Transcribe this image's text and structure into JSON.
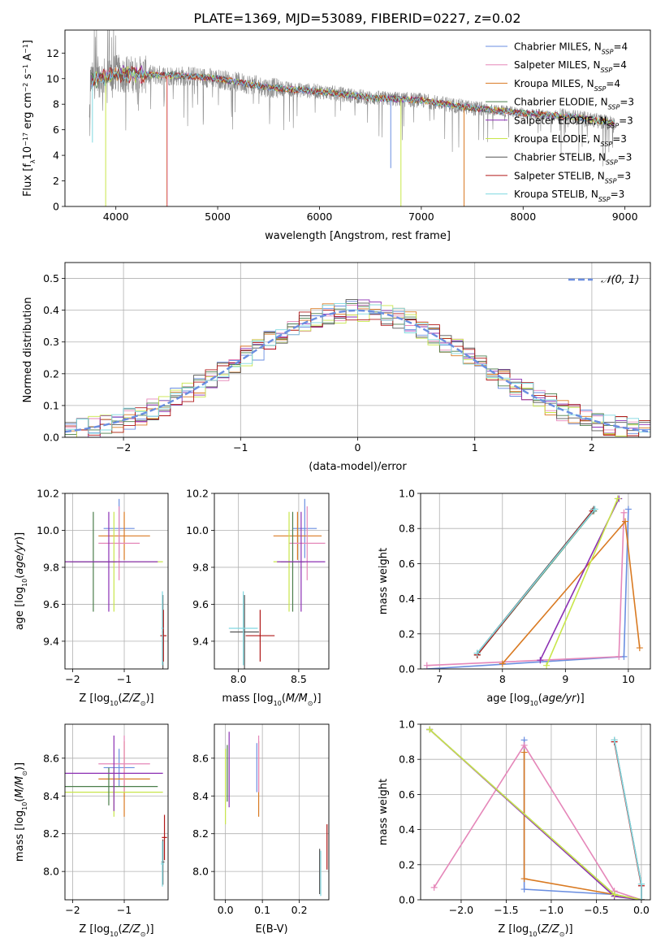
{
  "colors": {
    "chabrier_miles": "#6a8ee0",
    "salpeter_miles": "#e587b9",
    "kroupa_miles": "#d97a22",
    "chabrier_elodie": "#4a7d4a",
    "salpeter_elodie": "#8b2fb3",
    "kroupa_elodie": "#c8e64a",
    "chabrier_stelib": "#555555",
    "salpeter_stelib": "#b01818",
    "kroupa_stelib": "#7fd8e0",
    "data": "#888888",
    "grid": "#b0b0b0"
  },
  "chart_data": [
    {
      "type": "line",
      "title": "PLATE=1369, MJD=53089, FIBERID=0227, z=0.02",
      "xlabel": "wavelength [Angstrom, rest frame]",
      "ylabel": "Flux [fλ10⁻¹⁷ erg cm⁻² s⁻¹ A⁻¹]",
      "xlim": [
        3500,
        9250
      ],
      "ylim": [
        0,
        13.8
      ],
      "x_ticks": [
        4000,
        5000,
        6000,
        7000,
        8000,
        9000
      ],
      "y_ticks": [
        0,
        2,
        4,
        6,
        8,
        10,
        12
      ],
      "grid": false,
      "legend_position": "top-right",
      "continuum_x": [
        3750,
        4000,
        4300,
        4700,
        5000,
        5500,
        6000,
        6500,
        7000,
        7500,
        8000,
        8500,
        8900
      ],
      "continuum_y": [
        9.8,
        10.4,
        10.3,
        10.2,
        10.0,
        9.3,
        9.0,
        8.5,
        8.3,
        7.7,
        7.3,
        7.0,
        6.5
      ],
      "series": [
        {
          "name": "Chabrier MILES, N_SSP=4",
          "color_key": "chabrier_miles"
        },
        {
          "name": "Salpeter MILES, N_SSP=4",
          "color_key": "salpeter_miles"
        },
        {
          "name": "Kroupa MILES, N_SSP=4",
          "color_key": "kroupa_miles"
        },
        {
          "name": "Chabrier ELODIE, N_SSP=3",
          "color_key": "chabrier_elodie"
        },
        {
          "name": "Salpeter ELODIE, N_SSP=3",
          "color_key": "salpeter_elodie"
        },
        {
          "name": "Kroupa ELODIE, N_SSP=3",
          "color_key": "kroupa_elodie"
        },
        {
          "name": "Chabrier STELIB, N_SSP=3",
          "color_key": "chabrier_stelib"
        },
        {
          "name": "Salpeter STELIB, N_SSP=3",
          "color_key": "salpeter_stelib"
        },
        {
          "name": "Kroupa STELIB, N_SSP=3",
          "color_key": "kroupa_stelib"
        }
      ]
    },
    {
      "type": "line",
      "xlabel": "(data-model)/error",
      "ylabel": "Normed distribution",
      "xlim": [
        -2.5,
        2.5
      ],
      "ylim": [
        0,
        0.55
      ],
      "x_ticks": [
        -2,
        -1,
        0,
        1,
        2
      ],
      "y_ticks": [
        0.0,
        0.1,
        0.2,
        0.3,
        0.4,
        0.5
      ],
      "grid": true,
      "legend": "𝒩(0, 1)",
      "legend_position": "top-right",
      "bin_width": 0.1
    },
    {
      "type": "scatter",
      "xlabel": "Z [log10(Z/Z⊙)]",
      "ylabel": "age [log10(age/yr)]",
      "xlim": [
        -2.15,
        -0.15
      ],
      "ylim": [
        9.25,
        10.2
      ],
      "x_ticks": [
        -2,
        -1
      ],
      "y_ticks": [
        9.4,
        9.6,
        9.8,
        10.0,
        10.2
      ],
      "grid": true,
      "points": [
        {
          "color_key": "chabrier_miles",
          "x": -1.1,
          "xerr": 0.3,
          "y": 10.01,
          "yerr": 0.16
        },
        {
          "color_key": "kroupa_miles",
          "x": -1.0,
          "xerr": 0.5,
          "y": 9.97,
          "yerr": 0.13
        },
        {
          "color_key": "salpeter_miles",
          "x": -1.1,
          "xerr": 0.4,
          "y": 9.93,
          "yerr": 0.2
        },
        {
          "color_key": "kroupa_elodie",
          "x": -1.2,
          "xerr": 0.95,
          "y": 9.83,
          "yerr": 0.27
        },
        {
          "color_key": "chabrier_elodie",
          "x": -1.6,
          "xerr": 0.45,
          "y": 9.83,
          "yerr": 0.27
        },
        {
          "color_key": "salpeter_elodie",
          "x": -1.3,
          "xerr": 0.95,
          "y": 9.83,
          "yerr": 0.27
        },
        {
          "color_key": "chabrier_stelib",
          "x": -0.25,
          "xerr": 0.02,
          "y": 9.45,
          "yerr": 0.2
        },
        {
          "color_key": "salpeter_stelib",
          "x": -0.24,
          "xerr": 0.06,
          "y": 9.43,
          "yerr": 0.14
        },
        {
          "color_key": "kroupa_stelib",
          "x": -0.26,
          "xerr": 0.02,
          "y": 9.47,
          "yerr": 0.2
        }
      ]
    },
    {
      "type": "scatter",
      "xlabel": "mass [log10(M/M⊙)]",
      "xlim": [
        7.8,
        8.75
      ],
      "ylim": [
        9.25,
        10.2
      ],
      "x_ticks": [
        8.0,
        8.5
      ],
      "y_ticks": [
        9.4,
        9.6,
        9.8,
        10.0,
        10.2
      ],
      "grid": true,
      "points": [
        {
          "color_key": "chabrier_miles",
          "x": 8.55,
          "xerr": 0.1,
          "y": 10.01,
          "yerr": 0.16
        },
        {
          "color_key": "kroupa_miles",
          "x": 8.49,
          "xerr": 0.2,
          "y": 9.97,
          "yerr": 0.13
        },
        {
          "color_key": "salpeter_miles",
          "x": 8.57,
          "xerr": 0.15,
          "y": 9.93,
          "yerr": 0.2
        },
        {
          "color_key": "kroupa_elodie",
          "x": 8.42,
          "xerr": 0.13,
          "y": 9.83,
          "yerr": 0.27
        },
        {
          "color_key": "chabrier_elodie",
          "x": 8.45,
          "xerr": 0.1,
          "y": 9.83,
          "yerr": 0.27
        },
        {
          "color_key": "salpeter_elodie",
          "x": 8.52,
          "xerr": 0.2,
          "y": 9.83,
          "yerr": 0.27
        },
        {
          "color_key": "chabrier_stelib",
          "x": 8.05,
          "xerr": 0.12,
          "y": 9.45,
          "yerr": 0.2
        },
        {
          "color_key": "salpeter_stelib",
          "x": 8.18,
          "xerr": 0.12,
          "y": 9.43,
          "yerr": 0.14
        },
        {
          "color_key": "kroupa_stelib",
          "x": 8.04,
          "xerr": 0.12,
          "y": 9.47,
          "yerr": 0.2
        }
      ]
    },
    {
      "type": "line",
      "xlabel": "age [log10(age/yr)]",
      "ylabel": "mass weight",
      "xlim": [
        6.7,
        10.35
      ],
      "ylim": [
        0,
        1
      ],
      "x_ticks": [
        7,
        8,
        9,
        10
      ],
      "y_ticks": [
        0.0,
        0.2,
        0.4,
        0.6,
        0.8,
        1.0
      ],
      "grid": true,
      "series": [
        {
          "color_key": "chabrier_miles",
          "x": [
            6.8,
            9.93,
            10.0
          ],
          "y": [
            0.0,
            0.07,
            0.91
          ]
        },
        {
          "color_key": "salpeter_miles",
          "x": [
            6.8,
            9.85,
            9.93
          ],
          "y": [
            0.02,
            0.07,
            0.89
          ]
        },
        {
          "color_key": "kroupa_miles",
          "x": [
            8.0,
            9.95,
            10.18
          ],
          "y": [
            0.03,
            0.84,
            0.12
          ]
        },
        {
          "color_key": "chabrier_elodie",
          "x": [
            7.6,
            9.45
          ],
          "y": [
            0.08,
            0.9
          ]
        },
        {
          "color_key": "salpeter_elodie",
          "x": [
            8.6,
            9.85
          ],
          "y": [
            0.05,
            0.97
          ]
        },
        {
          "color_key": "kroupa_elodie",
          "x": [
            8.7,
            9.83
          ],
          "y": [
            0.02,
            0.97
          ]
        },
        {
          "color_key": "chabrier_stelib",
          "x": [
            7.6,
            9.45
          ],
          "y": [
            0.09,
            0.91
          ]
        },
        {
          "color_key": "salpeter_stelib",
          "x": [
            7.6,
            9.43
          ],
          "y": [
            0.08,
            0.9
          ]
        },
        {
          "color_key": "kroupa_stelib",
          "x": [
            7.6,
            9.47
          ],
          "y": [
            0.09,
            0.91
          ]
        }
      ]
    },
    {
      "type": "scatter",
      "xlabel": "Z [log10(Z/Z⊙)]",
      "ylabel": "mass [log10(M/M⊙)]",
      "xlim": [
        -2.15,
        -0.15
      ],
      "ylim": [
        7.85,
        8.78
      ],
      "x_ticks": [
        -2,
        -1
      ],
      "y_ticks": [
        8.0,
        8.2,
        8.4,
        8.6
      ],
      "grid": true,
      "points": [
        {
          "color_key": "chabrier_miles",
          "x": -1.1,
          "xerr": 0.3,
          "y": 8.55,
          "yerr": 0.1
        },
        {
          "color_key": "kroupa_miles",
          "x": -1.0,
          "xerr": 0.5,
          "y": 8.49,
          "yerr": 0.2
        },
        {
          "color_key": "salpeter_miles",
          "x": -1.0,
          "xerr": 0.5,
          "y": 8.57,
          "yerr": 0.15
        },
        {
          "color_key": "kroupa_elodie",
          "x": -1.2,
          "xerr": 0.95,
          "y": 8.42,
          "yerr": 0.13
        },
        {
          "color_key": "chabrier_elodie",
          "x": -1.3,
          "xerr": 0.95,
          "y": 8.45,
          "yerr": 0.1
        },
        {
          "color_key": "salpeter_elodie",
          "x": -1.2,
          "xerr": 0.95,
          "y": 8.52,
          "yerr": 0.2
        },
        {
          "color_key": "chabrier_stelib",
          "x": -0.25,
          "xerr": 0.03,
          "y": 8.05,
          "yerr": 0.12
        },
        {
          "color_key": "salpeter_stelib",
          "x": -0.22,
          "xerr": 0.05,
          "y": 8.18,
          "yerr": 0.12
        },
        {
          "color_key": "kroupa_stelib",
          "x": -0.26,
          "xerr": 0.03,
          "y": 8.04,
          "yerr": 0.12
        }
      ]
    },
    {
      "type": "scatter",
      "xlabel": "E(B-V)",
      "xlim": [
        -0.03,
        0.28
      ],
      "ylim": [
        7.85,
        8.78
      ],
      "x_ticks": [
        0.0,
        0.1,
        0.2
      ],
      "y_ticks": [
        8.0,
        8.2,
        8.4,
        8.6
      ],
      "grid": true,
      "points": [
        {
          "color_key": "chabrier_miles",
          "x": 0.085,
          "y": 8.55,
          "yerr": 0.13
        },
        {
          "color_key": "kroupa_miles",
          "x": 0.09,
          "y": 8.49,
          "yerr": 0.2
        },
        {
          "color_key": "salpeter_miles",
          "x": 0.09,
          "y": 8.57,
          "yerr": 0.15
        },
        {
          "color_key": "kroupa_elodie",
          "x": 0.0,
          "y": 8.45,
          "yerr": 0.2
        },
        {
          "color_key": "chabrier_elodie",
          "x": 0.005,
          "y": 8.52,
          "yerr": 0.15
        },
        {
          "color_key": "salpeter_elodie",
          "x": 0.01,
          "y": 8.54,
          "yerr": 0.2
        },
        {
          "color_key": "chabrier_stelib",
          "x": 0.255,
          "y": 8.0,
          "yerr": 0.12
        },
        {
          "color_key": "salpeter_stelib",
          "x": 0.275,
          "y": 8.13,
          "yerr": 0.12
        },
        {
          "color_key": "kroupa_stelib",
          "x": 0.258,
          "y": 7.99,
          "yerr": 0.12
        }
      ]
    },
    {
      "type": "line",
      "xlabel": "Z [log10(Z/Z⊙)]",
      "ylabel": "mass weight",
      "xlim": [
        -2.45,
        0.1
      ],
      "ylim": [
        0,
        1
      ],
      "x_ticks": [
        -2.0,
        -1.5,
        -1.0,
        -0.5,
        0.0
      ],
      "y_ticks": [
        0.0,
        0.2,
        0.4,
        0.6,
        0.8,
        1.0
      ],
      "grid": true,
      "series": [
        {
          "color_key": "chabrier_miles",
          "x": [
            -1.3,
            -1.3,
            -0.3,
            0.0
          ],
          "y": [
            0.91,
            0.06,
            0.03,
            0.0
          ]
        },
        {
          "color_key": "salpeter_miles",
          "x": [
            -2.3,
            -1.3,
            -0.3,
            0.0
          ],
          "y": [
            0.07,
            0.88,
            0.05,
            0.0
          ]
        },
        {
          "color_key": "kroupa_miles",
          "x": [
            -1.3,
            -1.3,
            -0.3,
            0.0
          ],
          "y": [
            0.84,
            0.12,
            0.03,
            0.0
          ]
        },
        {
          "color_key": "chabrier_elodie",
          "x": [
            -2.35,
            -0.3,
            0.0
          ],
          "y": [
            0.97,
            0.03,
            0.0
          ]
        },
        {
          "color_key": "salpeter_elodie",
          "x": [
            -2.35,
            -0.3,
            0.0
          ],
          "y": [
            0.97,
            0.02,
            0.0
          ]
        },
        {
          "color_key": "kroupa_elodie",
          "x": [
            -2.35,
            -0.3,
            0.0
          ],
          "y": [
            0.97,
            0.03,
            0.0
          ]
        },
        {
          "color_key": "chabrier_stelib",
          "x": [
            -0.3,
            0.0,
            0.0
          ],
          "y": [
            0.91,
            0.09,
            0.0
          ]
        },
        {
          "color_key": "salpeter_stelib",
          "x": [
            -0.3,
            0.0,
            0.0
          ],
          "y": [
            0.9,
            0.08,
            0.0
          ]
        },
        {
          "color_key": "kroupa_stelib",
          "x": [
            -0.3,
            0.0,
            0.0
          ],
          "y": [
            0.91,
            0.09,
            0.0
          ]
        }
      ]
    }
  ]
}
